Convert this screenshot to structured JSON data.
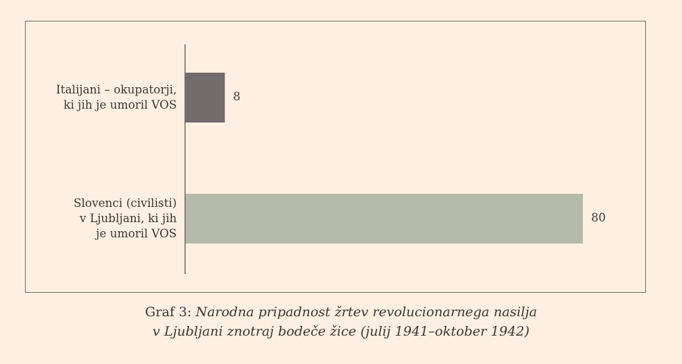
{
  "chart_data": {
    "type": "bar",
    "orientation": "horizontal",
    "categories": [
      "Italijani – okupatorji,\nki jih je umoril VOS",
      "Slovenci (civilisti)\nv Ljubljani, ki jih\nje umoril VOS"
    ],
    "values": [
      8,
      80
    ],
    "data_labels": [
      "8",
      "80"
    ],
    "colors": [
      "#726b6b",
      "#b6baab"
    ],
    "xlim": [
      0,
      80
    ],
    "grid": false,
    "legend": "none"
  },
  "caption": {
    "prefix": "Graf 3:",
    "line1": "Narodna pripadnost žrtev revolucionarnega nasilja",
    "line2": "v Ljubljani znotraj bodeče žice (julij 1941–oktober 1942)"
  },
  "colors": {
    "background": "#fdf0e2",
    "frame": "#6f6a66",
    "axis": "#6f6a66"
  }
}
